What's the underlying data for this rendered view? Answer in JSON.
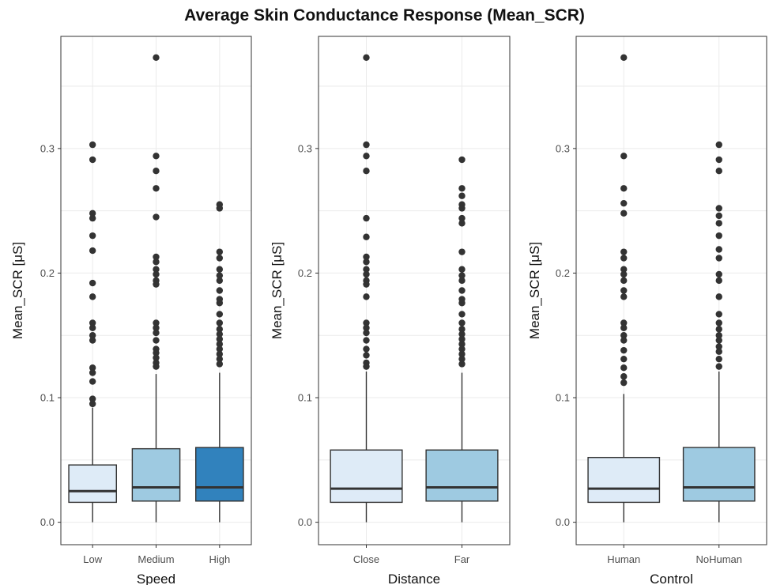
{
  "figure": {
    "title": "Average Skin Conductance Response (Mean_SCR)"
  },
  "style": {
    "fill_colors": [
      "#deebf7",
      "#9ecae1",
      "#3182bd"
    ],
    "point_color": "#333333",
    "grid_color": "#ebebeb",
    "panel_border_color": "#333333"
  },
  "chart_data": [
    {
      "type": "box",
      "xlabel": "Speed",
      "ylabel": "Mean_SCR [μS]",
      "ylim": [
        -0.018,
        0.39
      ],
      "yticks": [
        0.0,
        0.1,
        0.2,
        0.3
      ],
      "ytick_labels": [
        "0.0",
        "0.1",
        "0.2",
        "0.3"
      ],
      "grid": true,
      "categories": [
        "Low",
        "Medium",
        "High"
      ],
      "boxes": [
        {
          "category": "Low",
          "fill": "#deebf7",
          "whisker_low": 0.0,
          "q1": 0.016,
          "median": 0.025,
          "q3": 0.046,
          "whisker_high": 0.092,
          "outliers": [
            0.303,
            0.291,
            0.248,
            0.244,
            0.23,
            0.218,
            0.192,
            0.181,
            0.16,
            0.156,
            0.15,
            0.146,
            0.124,
            0.12,
            0.113,
            0.099,
            0.095
          ]
        },
        {
          "category": "Medium",
          "fill": "#9ecae1",
          "whisker_low": 0.0,
          "q1": 0.017,
          "median": 0.028,
          "q3": 0.059,
          "whisker_high": 0.119,
          "outliers": [
            0.373,
            0.294,
            0.282,
            0.268,
            0.245,
            0.213,
            0.209,
            0.203,
            0.199,
            0.194,
            0.191,
            0.16,
            0.156,
            0.152,
            0.146,
            0.139,
            0.136,
            0.132,
            0.128,
            0.125
          ]
        },
        {
          "category": "High",
          "fill": "#3182bd",
          "whisker_low": 0.0,
          "q1": 0.017,
          "median": 0.028,
          "q3": 0.06,
          "whisker_high": 0.12,
          "outliers": [
            0.255,
            0.252,
            0.217,
            0.212,
            0.203,
            0.198,
            0.194,
            0.186,
            0.179,
            0.176,
            0.167,
            0.16,
            0.155,
            0.151,
            0.147,
            0.143,
            0.139,
            0.135,
            0.131,
            0.127
          ]
        }
      ]
    },
    {
      "type": "box",
      "xlabel": "Distance",
      "ylabel": "Mean_SCR [μS]",
      "ylim": [
        -0.018,
        0.39
      ],
      "yticks": [
        0.0,
        0.1,
        0.2,
        0.3
      ],
      "ytick_labels": [
        "0.0",
        "0.1",
        "0.2",
        "0.3"
      ],
      "grid": true,
      "categories": [
        "Close",
        "Far"
      ],
      "boxes": [
        {
          "category": "Close",
          "fill": "#deebf7",
          "whisker_low": 0.0,
          "q1": 0.016,
          "median": 0.027,
          "q3": 0.058,
          "whisker_high": 0.121,
          "outliers": [
            0.373,
            0.303,
            0.294,
            0.282,
            0.244,
            0.229,
            0.213,
            0.209,
            0.203,
            0.199,
            0.194,
            0.191,
            0.181,
            0.16,
            0.156,
            0.152,
            0.146,
            0.139,
            0.134,
            0.128,
            0.125
          ]
        },
        {
          "category": "Far",
          "fill": "#9ecae1",
          "whisker_low": 0.0,
          "q1": 0.017,
          "median": 0.028,
          "q3": 0.058,
          "whisker_high": 0.12,
          "outliers": [
            0.291,
            0.268,
            0.262,
            0.255,
            0.252,
            0.244,
            0.24,
            0.217,
            0.203,
            0.198,
            0.194,
            0.186,
            0.179,
            0.176,
            0.167,
            0.16,
            0.155,
            0.151,
            0.147,
            0.143,
            0.139,
            0.135,
            0.131,
            0.127
          ]
        }
      ]
    },
    {
      "type": "box",
      "xlabel": "Control",
      "ylabel": "Mean_SCR [μS]",
      "ylim": [
        -0.018,
        0.39
      ],
      "yticks": [
        0.0,
        0.1,
        0.2,
        0.3
      ],
      "ytick_labels": [
        "0.0",
        "0.1",
        "0.2",
        "0.3"
      ],
      "grid": true,
      "categories": [
        "Human",
        "NoHuman"
      ],
      "boxes": [
        {
          "category": "Human",
          "fill": "#deebf7",
          "whisker_low": 0.0,
          "q1": 0.016,
          "median": 0.027,
          "q3": 0.052,
          "whisker_high": 0.103,
          "outliers": [
            0.373,
            0.294,
            0.268,
            0.256,
            0.248,
            0.217,
            0.212,
            0.203,
            0.199,
            0.194,
            0.186,
            0.181,
            0.16,
            0.156,
            0.15,
            0.146,
            0.138,
            0.131,
            0.124,
            0.117,
            0.112
          ]
        },
        {
          "category": "NoHuman",
          "fill": "#9ecae1",
          "whisker_low": 0.0,
          "q1": 0.017,
          "median": 0.028,
          "q3": 0.06,
          "whisker_high": 0.121,
          "outliers": [
            0.303,
            0.291,
            0.282,
            0.252,
            0.246,
            0.24,
            0.23,
            0.219,
            0.212,
            0.199,
            0.194,
            0.181,
            0.167,
            0.16,
            0.155,
            0.15,
            0.146,
            0.141,
            0.137,
            0.131,
            0.125
          ]
        }
      ]
    }
  ]
}
